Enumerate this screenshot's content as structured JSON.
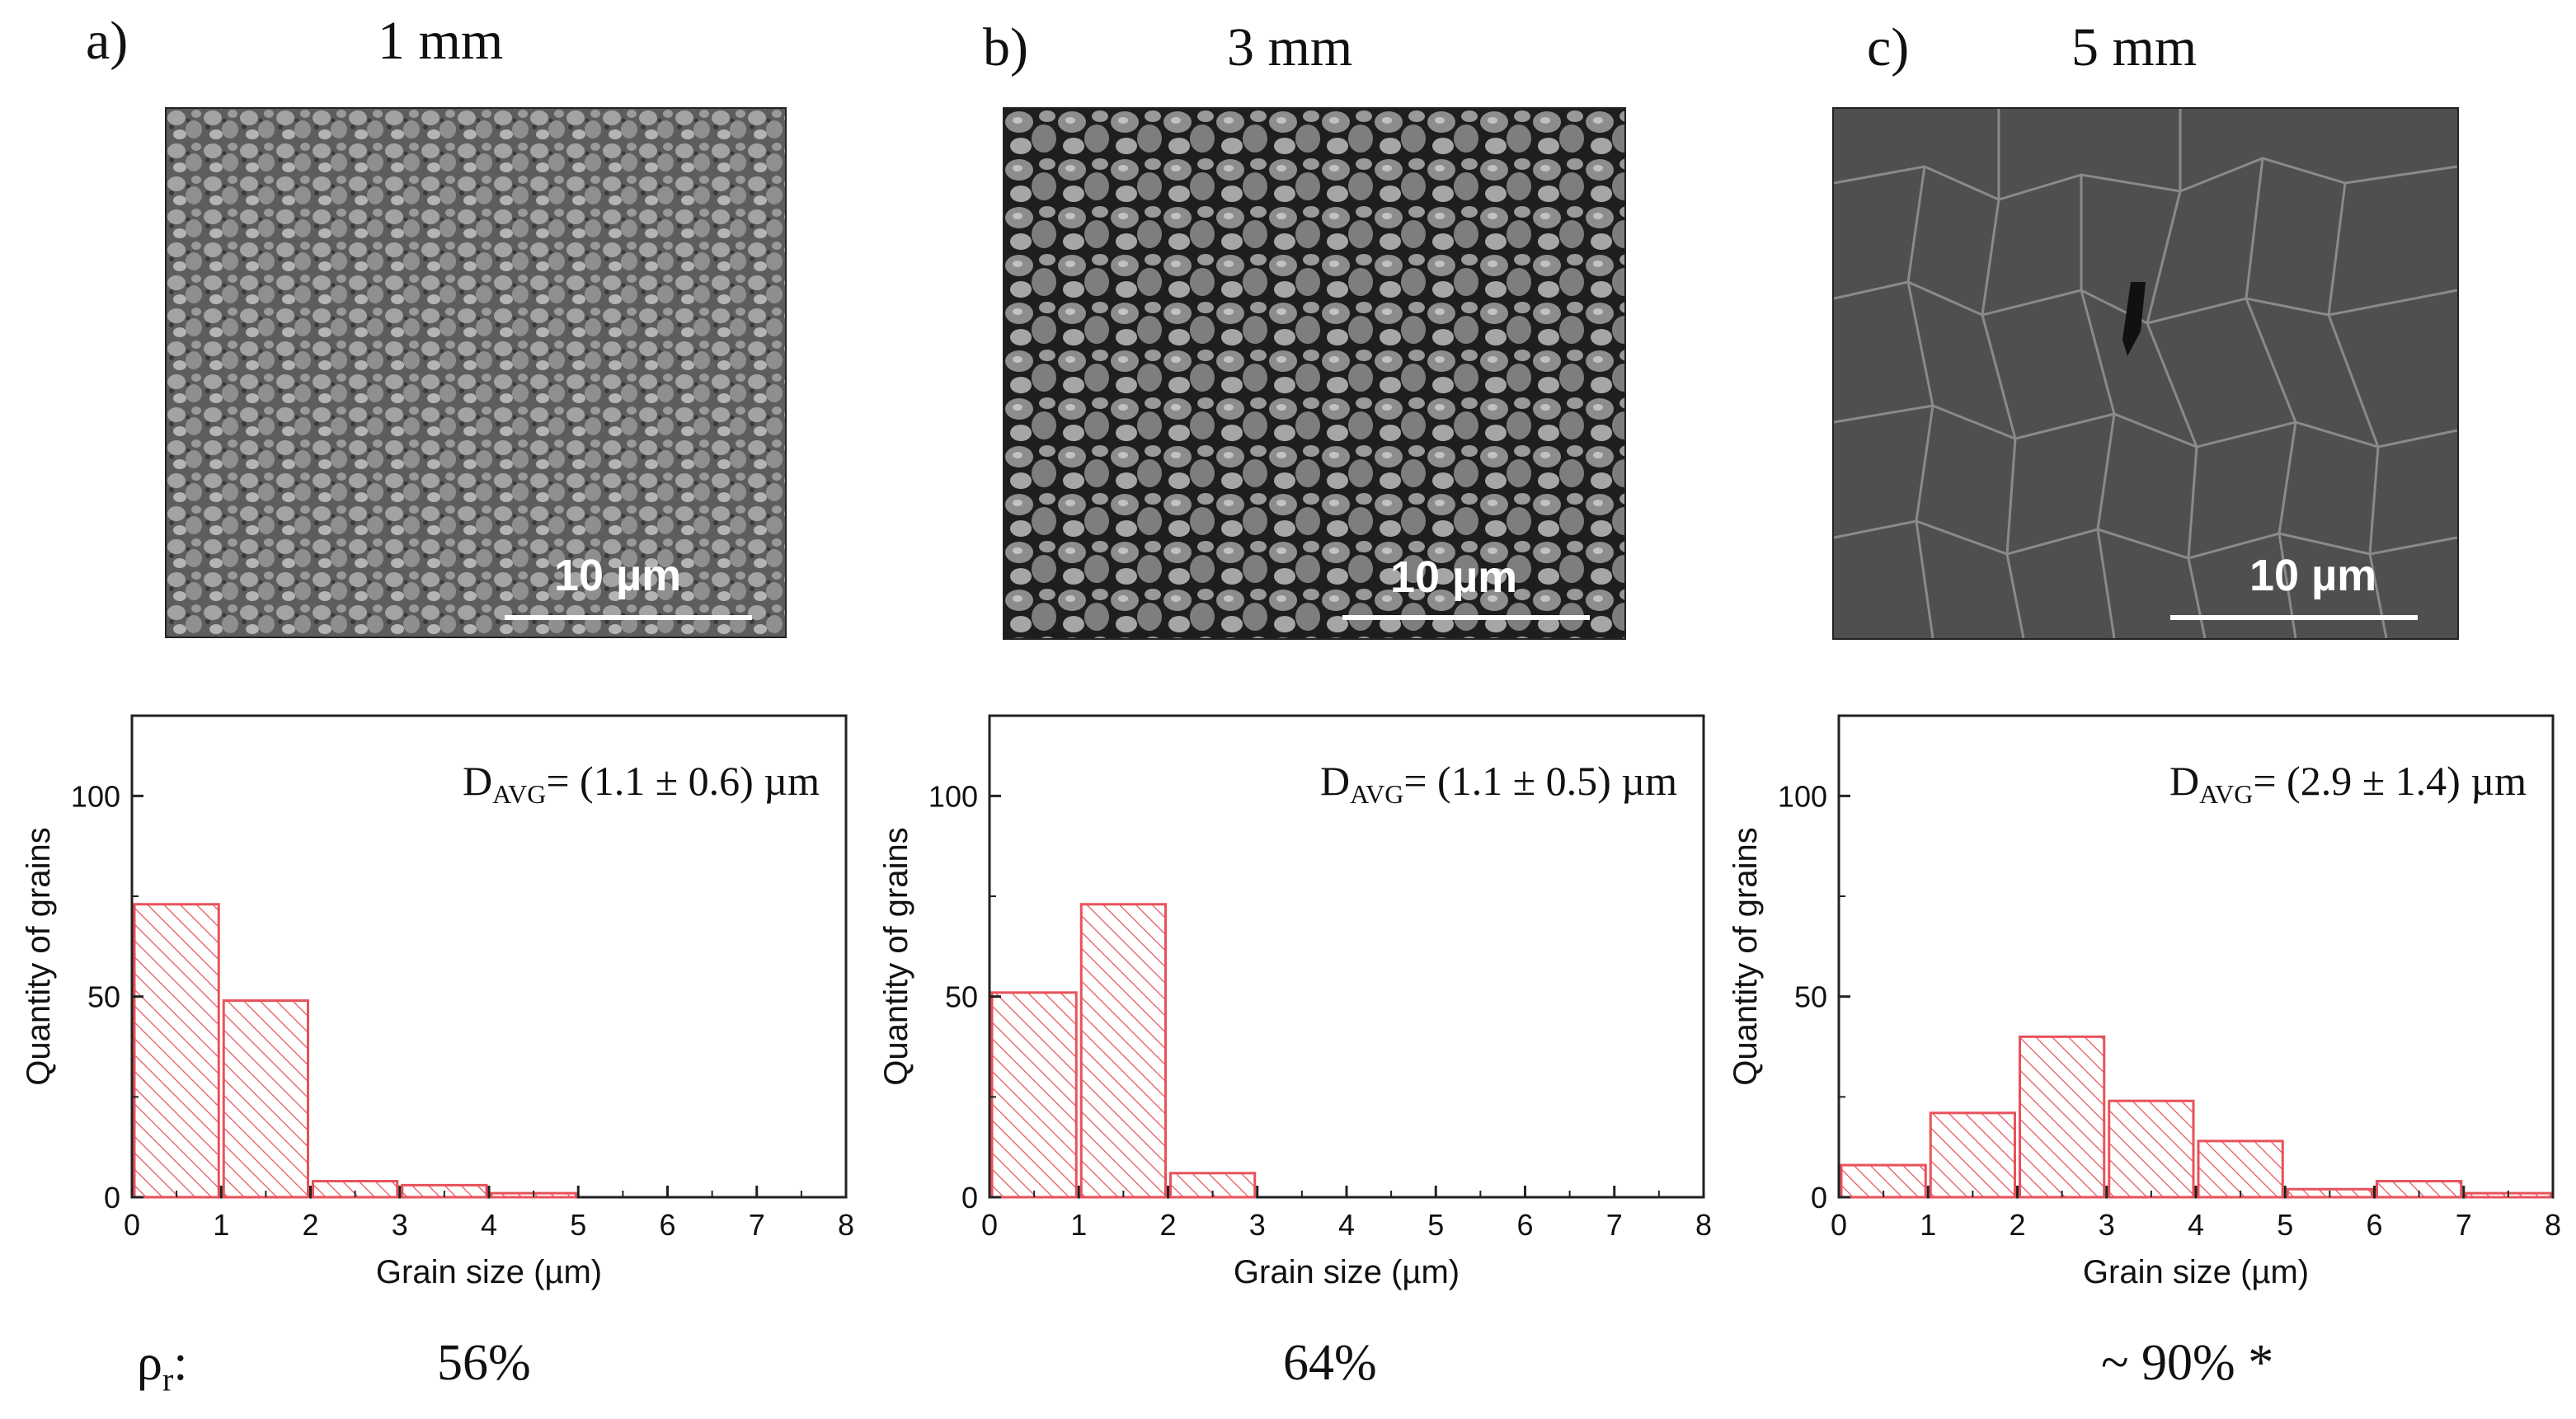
{
  "panels": [
    {
      "letter": "a)",
      "title": "1 mm",
      "scale_label": "10 µm",
      "density": "56%"
    },
    {
      "letter": "b)",
      "title": "3 mm",
      "scale_label": "10 µm",
      "density": "64%"
    },
    {
      "letter": "c)",
      "title": "5 mm",
      "scale_label": "10 µm",
      "density": "~ 90% *"
    }
  ],
  "density_label": "ρr:",
  "chart_data": [
    {
      "type": "bar",
      "xlabel": "Grain size (µm)",
      "ylabel": "Quantity of grains",
      "xlim": [
        0,
        8
      ],
      "ylim": [
        0,
        120
      ],
      "xticks": [
        "0",
        "1",
        "2",
        "3",
        "4",
        "5",
        "6",
        "7",
        "8"
      ],
      "yticks": [
        "0",
        "50",
        "100"
      ],
      "annotation": "DAVG= (1.1 ± 0.6) µm",
      "bins": [
        [
          0,
          1
        ],
        [
          1,
          2
        ],
        [
          2,
          3
        ],
        [
          3,
          4
        ],
        [
          4,
          5
        ]
      ],
      "values": [
        73,
        49,
        4,
        3,
        1
      ],
      "color": "#e8525a"
    },
    {
      "type": "bar",
      "xlabel": "Grain size (µm)",
      "ylabel": "Quantity of grains",
      "xlim": [
        0,
        8
      ],
      "ylim": [
        0,
        120
      ],
      "xticks": [
        "0",
        "1",
        "2",
        "3",
        "4",
        "5",
        "6",
        "7",
        "8"
      ],
      "yticks": [
        "0",
        "50",
        "100"
      ],
      "annotation": "DAVG= (1.1 ± 0.5) µm",
      "bins": [
        [
          0,
          1
        ],
        [
          1,
          2
        ],
        [
          2,
          3
        ]
      ],
      "values": [
        51,
        73,
        6
      ],
      "color": "#e8525a"
    },
    {
      "type": "bar",
      "xlabel": "Grain size (µm)",
      "ylabel": "Quantity of grains",
      "xlim": [
        0,
        8
      ],
      "ylim": [
        0,
        120
      ],
      "xticks": [
        "0",
        "1",
        "2",
        "3",
        "4",
        "5",
        "6",
        "7",
        "8"
      ],
      "yticks": [
        "0",
        "50",
        "100"
      ],
      "annotation": "DAVG= (2.9 ± 1.4) µm",
      "bins": [
        [
          0,
          1
        ],
        [
          1,
          2
        ],
        [
          2,
          3
        ],
        [
          3,
          4
        ],
        [
          4,
          5
        ],
        [
          5,
          6
        ],
        [
          6,
          7
        ],
        [
          7,
          8
        ]
      ],
      "values": [
        8,
        21,
        40,
        24,
        14,
        2,
        4,
        1
      ],
      "color": "#e8525a"
    }
  ]
}
